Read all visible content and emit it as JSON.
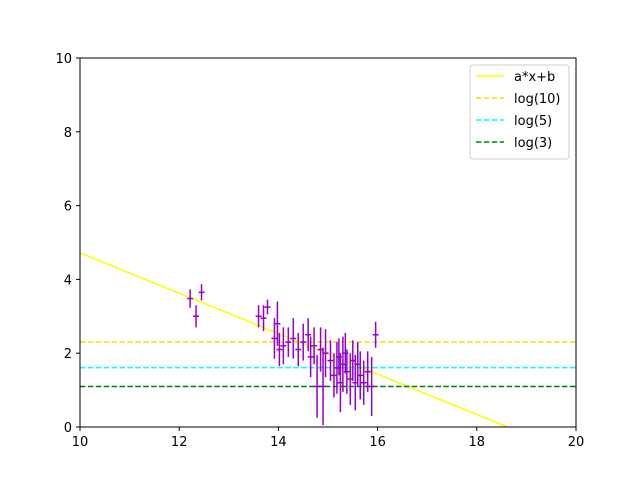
{
  "chart_data": {
    "type": "scatter",
    "title": "",
    "xlabel": "",
    "ylabel": "",
    "xlim": [
      10,
      20
    ],
    "ylim": [
      0,
      10
    ],
    "xticks": [
      "10",
      "12",
      "14",
      "16",
      "18",
      "20"
    ],
    "yticks": [
      "0",
      "2",
      "4",
      "6",
      "8",
      "10"
    ],
    "grid": false,
    "legend_position": "top-right",
    "series": [
      {
        "name": "a*x+b",
        "kind": "line",
        "style": "solid",
        "color": "#ffff00",
        "x": [
          10,
          18.62
        ],
        "y": [
          4.72,
          0
        ]
      },
      {
        "name": "log(10)",
        "kind": "hline",
        "style": "dashed",
        "color": "#ffd700",
        "y": 2.303
      },
      {
        "name": "log(5)",
        "kind": "hline",
        "style": "dashed",
        "color": "#00ffff",
        "y": 1.609
      },
      {
        "name": "log(3)",
        "kind": "hline",
        "style": "dashed",
        "color": "#008000",
        "y": 1.099
      },
      {
        "kind": "errorbar",
        "color": "#9400d3",
        "points": [
          {
            "x": 12.22,
            "y": 3.48,
            "yerr": 0.25,
            "xerr": 0.06
          },
          {
            "x": 12.34,
            "y": 3.0,
            "yerr": 0.3,
            "xerr": 0.06
          },
          {
            "x": 12.45,
            "y": 3.65,
            "yerr": 0.22,
            "xerr": 0.06
          },
          {
            "x": 13.6,
            "y": 3.0,
            "yerr": 0.3,
            "xerr": 0.06
          },
          {
            "x": 13.7,
            "y": 2.95,
            "yerr": 0.35,
            "xerr": 0.06
          },
          {
            "x": 13.78,
            "y": 3.25,
            "yerr": 0.2,
            "xerr": 0.06
          },
          {
            "x": 13.92,
            "y": 2.4,
            "yerr": 0.55,
            "xerr": 0.06
          },
          {
            "x": 13.98,
            "y": 2.8,
            "yerr": 0.6,
            "xerr": 0.06
          },
          {
            "x": 14.02,
            "y": 2.1,
            "yerr": 0.45,
            "xerr": 0.06
          },
          {
            "x": 14.1,
            "y": 2.2,
            "yerr": 0.5,
            "xerr": 0.06
          },
          {
            "x": 14.2,
            "y": 2.3,
            "yerr": 0.4,
            "xerr": 0.06
          },
          {
            "x": 14.3,
            "y": 2.4,
            "yerr": 0.55,
            "xerr": 0.06
          },
          {
            "x": 14.4,
            "y": 2.1,
            "yerr": 0.45,
            "xerr": 0.06
          },
          {
            "x": 14.5,
            "y": 2.3,
            "yerr": 0.5,
            "xerr": 0.06
          },
          {
            "x": 14.6,
            "y": 2.5,
            "yerr": 0.45,
            "xerr": 0.06
          },
          {
            "x": 14.65,
            "y": 1.9,
            "yerr": 0.55,
            "xerr": 0.06
          },
          {
            "x": 14.72,
            "y": 2.2,
            "yerr": 0.5,
            "xerr": 0.06
          },
          {
            "x": 14.78,
            "y": 1.1,
            "yerr": 0.85,
            "xerr": 0.06
          },
          {
            "x": 14.85,
            "y": 2.1,
            "yerr": 0.6,
            "xerr": 0.06
          },
          {
            "x": 14.9,
            "y": 1.1,
            "yerr": 1.05,
            "xerr": 0.06
          },
          {
            "x": 14.95,
            "y": 2.0,
            "yerr": 0.65,
            "xerr": 0.06
          },
          {
            "x": 15.05,
            "y": 1.8,
            "yerr": 0.55,
            "xerr": 0.06
          },
          {
            "x": 15.12,
            "y": 1.4,
            "yerr": 0.6,
            "xerr": 0.06
          },
          {
            "x": 15.18,
            "y": 1.6,
            "yerr": 0.7,
            "xerr": 0.06
          },
          {
            "x": 15.22,
            "y": 1.9,
            "yerr": 0.5,
            "xerr": 0.06
          },
          {
            "x": 15.25,
            "y": 1.2,
            "yerr": 0.8,
            "xerr": 0.06
          },
          {
            "x": 15.3,
            "y": 1.7,
            "yerr": 0.75,
            "xerr": 0.06
          },
          {
            "x": 15.35,
            "y": 2.0,
            "yerr": 0.55,
            "xerr": 0.06
          },
          {
            "x": 15.38,
            "y": 1.5,
            "yerr": 0.6,
            "xerr": 0.06
          },
          {
            "x": 15.45,
            "y": 1.3,
            "yerr": 0.7,
            "xerr": 0.06
          },
          {
            "x": 15.5,
            "y": 1.8,
            "yerr": 0.55,
            "xerr": 0.06
          },
          {
            "x": 15.55,
            "y": 1.2,
            "yerr": 0.75,
            "xerr": 0.06
          },
          {
            "x": 15.6,
            "y": 1.7,
            "yerr": 0.6,
            "xerr": 0.06
          },
          {
            "x": 15.65,
            "y": 1.4,
            "yerr": 0.65,
            "xerr": 0.06
          },
          {
            "x": 15.72,
            "y": 1.2,
            "yerr": 0.6,
            "xerr": 0.06
          },
          {
            "x": 15.8,
            "y": 1.5,
            "yerr": 0.55,
            "xerr": 0.06
          },
          {
            "x": 15.88,
            "y": 1.1,
            "yerr": 0.8,
            "xerr": 0.06
          },
          {
            "x": 15.96,
            "y": 2.5,
            "yerr": 0.35,
            "xerr": 0.06
          }
        ]
      }
    ]
  }
}
